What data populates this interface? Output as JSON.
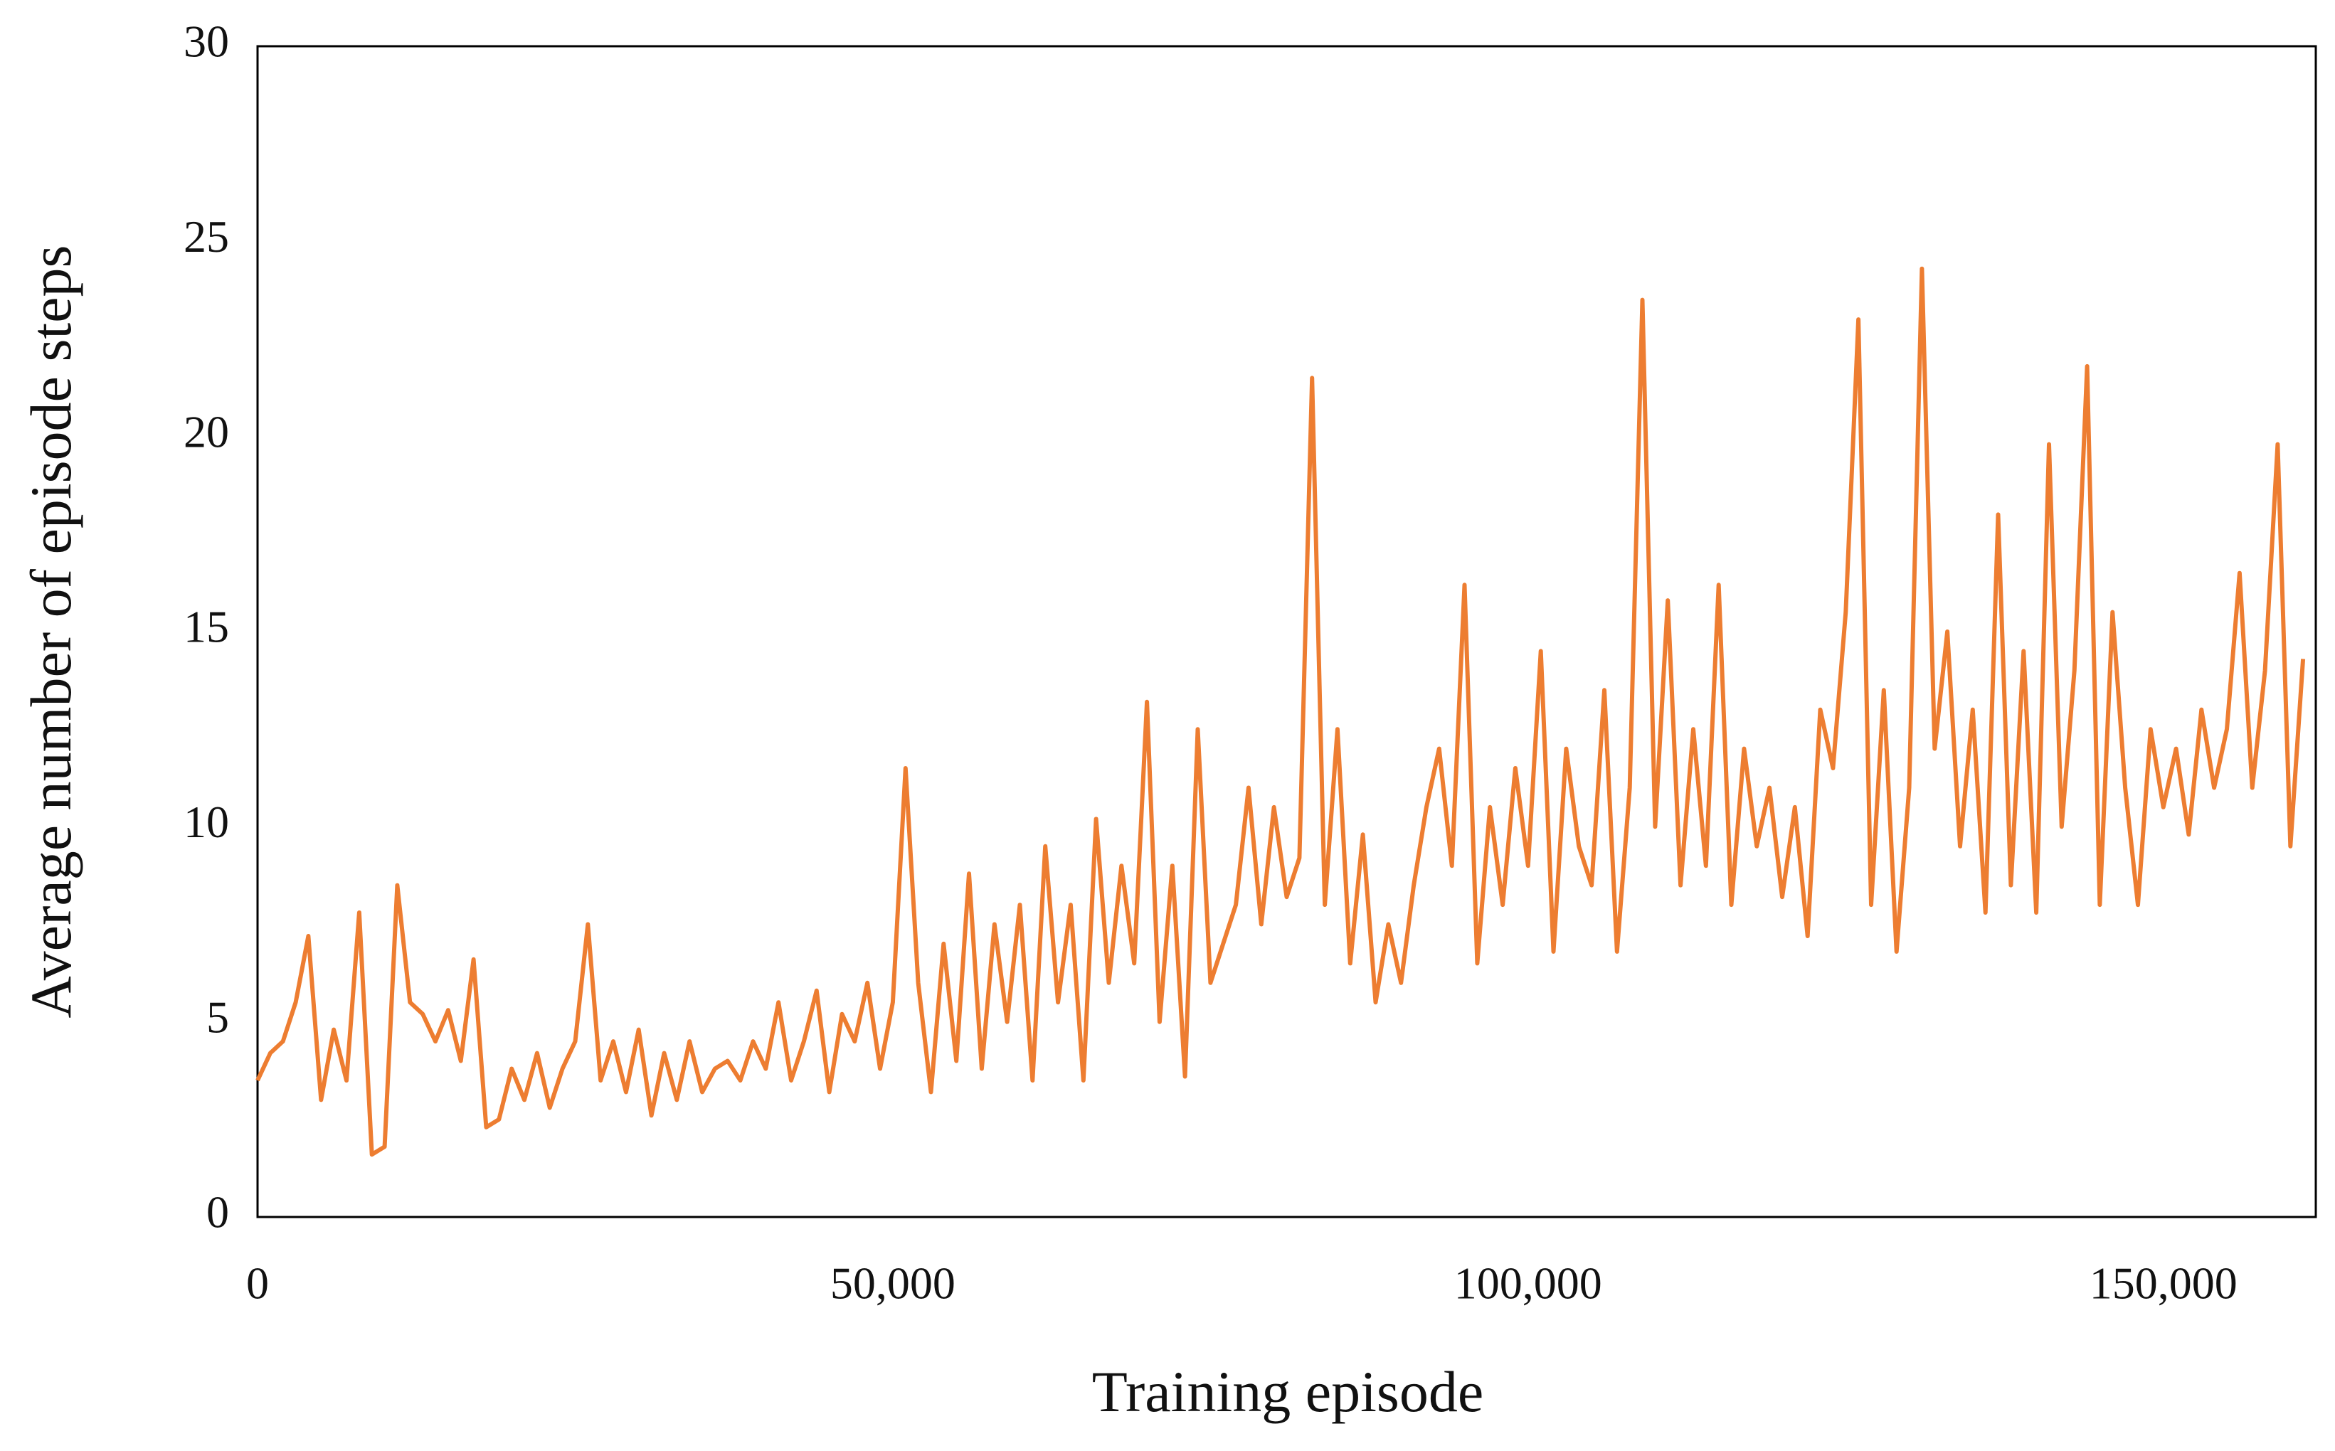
{
  "chart_data": {
    "type": "line",
    "xlabel": "Training episode",
    "ylabel": "Average number of episode steps",
    "x": [
      0,
      1000,
      2000,
      3000,
      4000,
      5000,
      6000,
      7000,
      8000,
      9000,
      10000,
      11000,
      12000,
      13000,
      14000,
      15000,
      16000,
      17000,
      18000,
      19000,
      20000,
      21000,
      22000,
      23000,
      24000,
      25000,
      26000,
      27000,
      28000,
      29000,
      30000,
      31000,
      32000,
      33000,
      34000,
      35000,
      36000,
      37000,
      38000,
      39000,
      40000,
      41000,
      42000,
      43000,
      44000,
      45000,
      46000,
      47000,
      48000,
      49000,
      50000,
      51000,
      52000,
      53000,
      54000,
      55000,
      56000,
      57000,
      58000,
      59000,
      60000,
      61000,
      62000,
      63000,
      64000,
      65000,
      66000,
      67000,
      68000,
      69000,
      70000,
      71000,
      72000,
      73000,
      74000,
      75000,
      76000,
      77000,
      78000,
      79000,
      80000,
      81000,
      82000,
      83000,
      84000,
      85000,
      86000,
      87000,
      88000,
      89000,
      90000,
      91000,
      92000,
      93000,
      94000,
      95000,
      96000,
      97000,
      98000,
      99000,
      100000,
      101000,
      102000,
      103000,
      104000,
      105000,
      106000,
      107000,
      108000,
      109000,
      110000,
      111000,
      112000,
      113000,
      114000,
      115000,
      116000,
      117000,
      118000,
      119000,
      120000,
      121000,
      122000,
      123000,
      124000,
      125000,
      126000,
      127000,
      128000,
      129000,
      130000,
      131000,
      132000,
      133000,
      134000,
      135000,
      136000,
      137000,
      138000,
      139000,
      140000,
      141000,
      142000,
      143000,
      144000,
      145000,
      146000,
      147000,
      148000,
      149000,
      150000,
      151000,
      152000,
      153000,
      154000,
      155000,
      156000,
      157000,
      158000,
      159000,
      160000,
      161000
    ],
    "series": [
      {
        "color": "#ed7d31",
        "values": [
          3.5,
          4.2,
          4.5,
          5.5,
          7.2,
          3.0,
          4.8,
          3.5,
          7.8,
          1.6,
          1.8,
          8.5,
          5.5,
          5.2,
          4.5,
          5.3,
          4.0,
          6.6,
          2.3,
          2.5,
          3.8,
          3.0,
          4.2,
          2.8,
          3.8,
          4.5,
          7.5,
          3.5,
          4.5,
          3.2,
          4.8,
          2.6,
          4.2,
          3.0,
          4.5,
          3.2,
          3.8,
          4.0,
          3.5,
          4.5,
          3.8,
          5.5,
          3.5,
          4.5,
          5.8,
          3.2,
          5.2,
          4.5,
          6.0,
          3.8,
          5.5,
          11.5,
          6.0,
          3.2,
          7.0,
          4.0,
          8.8,
          3.8,
          7.5,
          5.0,
          8.0,
          3.5,
          9.5,
          5.5,
          8.0,
          3.5,
          10.2,
          6.0,
          9.0,
          6.5,
          13.2,
          5.0,
          9.0,
          3.6,
          12.5,
          6.0,
          7.0,
          8.0,
          11.0,
          7.5,
          10.5,
          8.2,
          9.2,
          21.5,
          8.0,
          12.5,
          6.5,
          9.8,
          5.5,
          7.5,
          6.0,
          8.5,
          10.5,
          12.0,
          9.0,
          16.2,
          6.5,
          10.5,
          8.0,
          11.5,
          9.0,
          14.5,
          6.8,
          12.0,
          9.5,
          8.5,
          13.5,
          6.8,
          11.0,
          23.5,
          10.0,
          15.8,
          8.5,
          12.5,
          9.0,
          16.2,
          8.0,
          12.0,
          9.5,
          11.0,
          8.2,
          10.5,
          7.2,
          13.0,
          11.5,
          15.5,
          23.0,
          8.0,
          13.5,
          6.8,
          11.0,
          24.3,
          12.0,
          15.0,
          9.5,
          13.0,
          7.8,
          18.0,
          8.5,
          14.5,
          7.8,
          19.8,
          10.0,
          14.0,
          21.8,
          8.0,
          15.5,
          11.0,
          8.0,
          12.5,
          10.5,
          12.0,
          9.8,
          13.0,
          11.0,
          12.5,
          16.5,
          11.0,
          14.0,
          19.8,
          9.5,
          14.3
        ]
      }
    ],
    "xlim": [
      0,
      162000
    ],
    "xticks": [
      0,
      {
        "value": 50000,
        "label": "50,000"
      },
      {
        "value": 100000,
        "label": "100,000"
      },
      {
        "value": 150000,
        "label": "150,000"
      }
    ],
    "ylim": [
      0,
      30
    ],
    "yticks": [
      0,
      5,
      10,
      15,
      20,
      25,
      30
    ],
    "grid": false
  }
}
